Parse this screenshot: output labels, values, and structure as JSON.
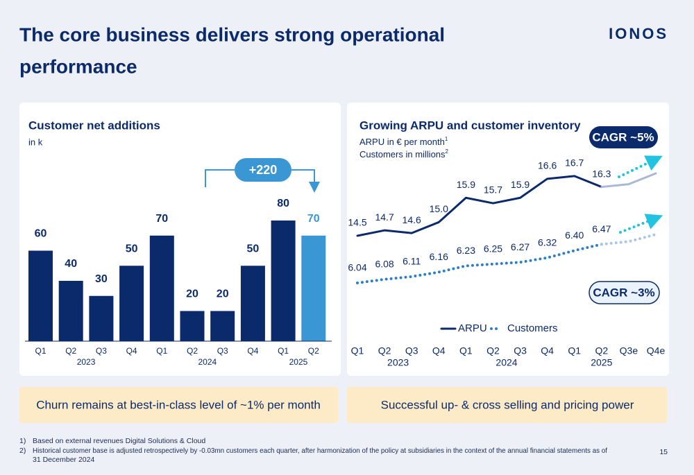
{
  "title_lines": [
    "The core business delivers strong operational",
    "performance"
  ],
  "logo": "IONOS",
  "chart_data": [
    {
      "type": "bar",
      "title": "Customer net additions",
      "subtitle": "in k",
      "categories": [
        "Q1",
        "Q2",
        "Q3",
        "Q4",
        "Q1",
        "Q2",
        "Q3",
        "Q4",
        "Q1",
        "Q2"
      ],
      "year_labels": [
        "2023",
        "2024",
        "2025"
      ],
      "values": [
        60,
        40,
        30,
        50,
        70,
        20,
        20,
        50,
        80,
        70
      ],
      "colors": [
        "#0b2a6b",
        "#0b2a6b",
        "#0b2a6b",
        "#0b2a6b",
        "#0b2a6b",
        "#0b2a6b",
        "#0b2a6b",
        "#0b2a6b",
        "#0b2a6b",
        "#3a97d4"
      ],
      "annotation": "+220"
    },
    {
      "type": "line",
      "title": "Growing ARPU and customer inventory",
      "subtitle_lines": [
        {
          "text": "ARPU in € per month",
          "note": "1"
        },
        {
          "text": "Customers in millions",
          "note": "2"
        }
      ],
      "categories": [
        "Q1",
        "Q2",
        "Q3",
        "Q4",
        "Q1",
        "Q2",
        "Q3",
        "Q4",
        "Q1",
        "Q2",
        "Q3e",
        "Q4e"
      ],
      "year_labels": [
        "2023",
        "2024",
        "2025"
      ],
      "series": [
        {
          "name": "ARPU",
          "color": "#0b2a6b",
          "projection_color": "#a9b8d4",
          "style": "solid",
          "values": [
            14.5,
            14.7,
            14.6,
            15.0,
            15.9,
            15.7,
            15.9,
            16.6,
            16.7,
            16.3,
            16.4,
            16.8
          ],
          "value_labels": [
            "14.5",
            "14.7",
            "14.6",
            "15.0",
            "15.9",
            "15.7",
            "15.9",
            "16.6",
            "16.7",
            "16.3",
            null,
            null
          ]
        },
        {
          "name": "Customers",
          "color": "#2c7fc6",
          "projection_color": "#a9c6e6",
          "style": "dotted",
          "values": [
            6.04,
            6.08,
            6.11,
            6.16,
            6.23,
            6.25,
            6.27,
            6.32,
            6.4,
            6.47,
            6.5,
            6.58
          ],
          "value_labels": [
            "6.04",
            "6.08",
            "6.11",
            "6.16",
            "6.23",
            "6.25",
            "6.27",
            "6.32",
            "6.40",
            "6.47",
            null,
            null
          ]
        }
      ],
      "annotations": [
        "CAGR ~5%",
        "CAGR ~3%"
      ]
    }
  ],
  "callouts": [
    "Churn remains at best-in-class level of ~1% per month",
    "Successful up- & cross selling and pricing power"
  ],
  "footnotes": [
    {
      "marker": "1)",
      "lines": [
        "Based on external revenues Digital Solutions & Cloud"
      ]
    },
    {
      "marker": "2)",
      "lines": [
        "Historical customer base is adjusted retrospectively by -0.03mn customers each quarter, after harmonization of the policy at subsidiaries in the context of the annual financial statements as of",
        "31 December 2024"
      ]
    }
  ],
  "page_number": "15"
}
